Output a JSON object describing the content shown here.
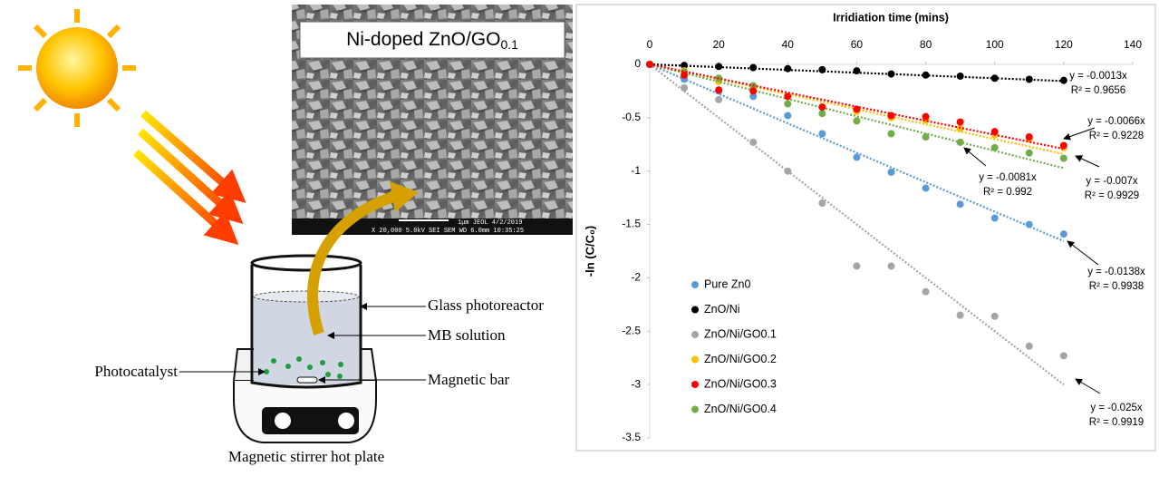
{
  "diagram": {
    "sem_label": "Ni-doped ZnO/GO",
    "sem_label_sub": "0.1",
    "sem_scale_top": "1μm   JEOL       4/2/2019",
    "sem_scale_bottom": "X 20,000   5.0kV  SEI   SEM    WD 6.0mm  10:35:25",
    "glass": "Glass photoreactor",
    "solution": "MB solution",
    "bar": "Magnetic bar",
    "catalyst": "Photocatalyst",
    "stirrer": "Magnetic stirrer hot plate"
  },
  "chart_data": {
    "type": "scatter",
    "xlabel": "Irridiation time (mins)",
    "ylabel": "-ln (C/C₀)",
    "x": [
      0,
      10,
      20,
      30,
      40,
      50,
      60,
      70,
      80,
      90,
      100,
      110,
      120
    ],
    "xlim": [
      0,
      140
    ],
    "xticks": [
      0,
      20,
      40,
      60,
      80,
      100,
      120,
      140
    ],
    "ylim": [
      -3.5,
      0
    ],
    "yticks": [
      0,
      -0.5,
      -1,
      -1.5,
      -2,
      -2.5,
      -3,
      -3.5
    ],
    "legend": "left",
    "series": [
      {
        "name": "Pure Zn0",
        "color": "#5b9bd5",
        "values": [
          0,
          -0.14,
          -0.25,
          -0.3,
          -0.48,
          -0.65,
          -0.87,
          -1.01,
          -1.16,
          -1.31,
          -1.44,
          -1.5,
          -1.59
        ],
        "trend": {
          "slope": -0.0138,
          "label": "y = -0.0138x",
          "r2": "R² = 0.9938"
        }
      },
      {
        "name": "ZnO/Ni",
        "color": "#000000",
        "values": [
          0,
          -0.01,
          -0.02,
          -0.03,
          -0.04,
          -0.05,
          -0.06,
          -0.09,
          -0.1,
          -0.11,
          -0.13,
          -0.14,
          -0.15
        ],
        "trend": {
          "slope": -0.0013,
          "label": "y = -0.0013x",
          "r2": "R² = 0.9656"
        }
      },
      {
        "name": "ZnO/Ni/GO0.1",
        "color": "#a5a5a5",
        "values": [
          0,
          -0.22,
          -0.33,
          -0.73,
          -1.0,
          -1.3,
          -1.89,
          -1.89,
          -2.13,
          -2.35,
          -2.36,
          -2.64,
          -2.73
        ],
        "trend": {
          "slope": -0.025,
          "label": "y = -0.025x",
          "r2": "R² = 0.9919"
        }
      },
      {
        "name": "ZnO/Ni/GO0.2",
        "color": "#ffc000",
        "values": [
          0,
          -0.06,
          -0.16,
          -0.22,
          -0.3,
          -0.4,
          -0.44,
          -0.5,
          -0.52,
          -0.6,
          -0.66,
          -0.7,
          -0.78
        ],
        "trend": {
          "slope": -0.007,
          "label": "y = -0.007x",
          "r2": "R² = 0.9929"
        }
      },
      {
        "name": "ZnO/Ni/GO0.3",
        "color": "#ff0000",
        "values": [
          0,
          -0.1,
          -0.24,
          -0.25,
          -0.3,
          -0.4,
          -0.42,
          -0.48,
          -0.49,
          -0.54,
          -0.63,
          -0.68,
          -0.76
        ],
        "trend": {
          "slope": -0.0066,
          "label": "y = -0.0066x",
          "r2": "R² = 0.9228"
        }
      },
      {
        "name": "ZnO/Ni/GO0.4",
        "color": "#70ad47",
        "values": [
          0,
          -0.07,
          -0.13,
          -0.2,
          -0.37,
          -0.46,
          -0.53,
          -0.65,
          -0.68,
          -0.73,
          -0.78,
          -0.83,
          -0.88
        ],
        "trend": {
          "slope": -0.0081,
          "label": "y = -0.0081x",
          "r2": "R² = 0.992"
        }
      }
    ]
  }
}
